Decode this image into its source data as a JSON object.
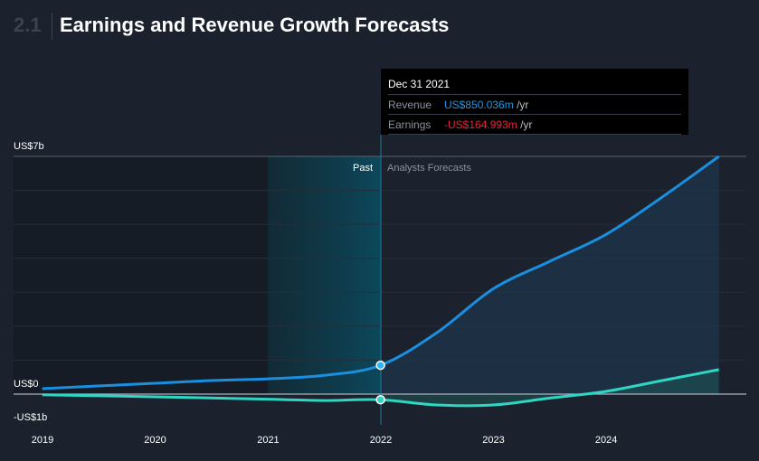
{
  "header": {
    "section_number": "2.1",
    "title": "Earnings and Revenue Growth Forecasts"
  },
  "tooltip": {
    "date": "Dec 31 2021",
    "revenue_label": "Revenue",
    "revenue_value": "US$850.036m",
    "earnings_label": "Earnings",
    "earnings_value": "-US$164.993m",
    "unit": "/yr"
  },
  "chart_data": {
    "type": "line",
    "x_tick_labels": [
      "2019",
      "2020",
      "2021",
      "2022",
      "2023",
      "2024"
    ],
    "y_tick_labels": [
      "US$7b",
      "US$0",
      "-US$1b"
    ],
    "ylim": [
      -1,
      7
    ],
    "past_label": "Past",
    "forecast_label": "Analysts Forecasts",
    "series": [
      {
        "name": "Revenue",
        "color": "#1a8fe0",
        "points": [
          [
            "2018-12-31",
            0.16
          ],
          [
            "2019-12-31",
            0.32
          ],
          [
            "2020-06-30",
            0.4
          ],
          [
            "2020-12-31",
            0.45
          ],
          [
            "2021-06-30",
            0.55
          ],
          [
            "2021-12-31",
            0.85
          ],
          [
            "2022-06-30",
            1.8
          ],
          [
            "2022-12-31",
            3.1
          ],
          [
            "2023-06-30",
            3.9
          ],
          [
            "2023-12-31",
            4.7
          ],
          [
            "2024-06-30",
            5.8
          ],
          [
            "2024-12-31",
            7.0
          ]
        ]
      },
      {
        "name": "Earnings",
        "color": "#2ed6c4",
        "points": [
          [
            "2018-12-31",
            -0.02
          ],
          [
            "2019-12-31",
            -0.08
          ],
          [
            "2020-12-31",
            -0.15
          ],
          [
            "2021-06-30",
            -0.19
          ],
          [
            "2021-12-31",
            -0.165
          ],
          [
            "2022-06-30",
            -0.32
          ],
          [
            "2022-12-31",
            -0.32
          ],
          [
            "2023-06-30",
            -0.12
          ],
          [
            "2023-12-31",
            0.08
          ],
          [
            "2024-06-30",
            0.4
          ],
          [
            "2024-12-31",
            0.72
          ]
        ]
      }
    ],
    "highlight_date": "2021-12-31",
    "colors": {
      "background": "#1b222d",
      "revenue": "#1a8fe0",
      "earnings": "#2ed6c4",
      "past_shade": "#0a5065"
    }
  }
}
